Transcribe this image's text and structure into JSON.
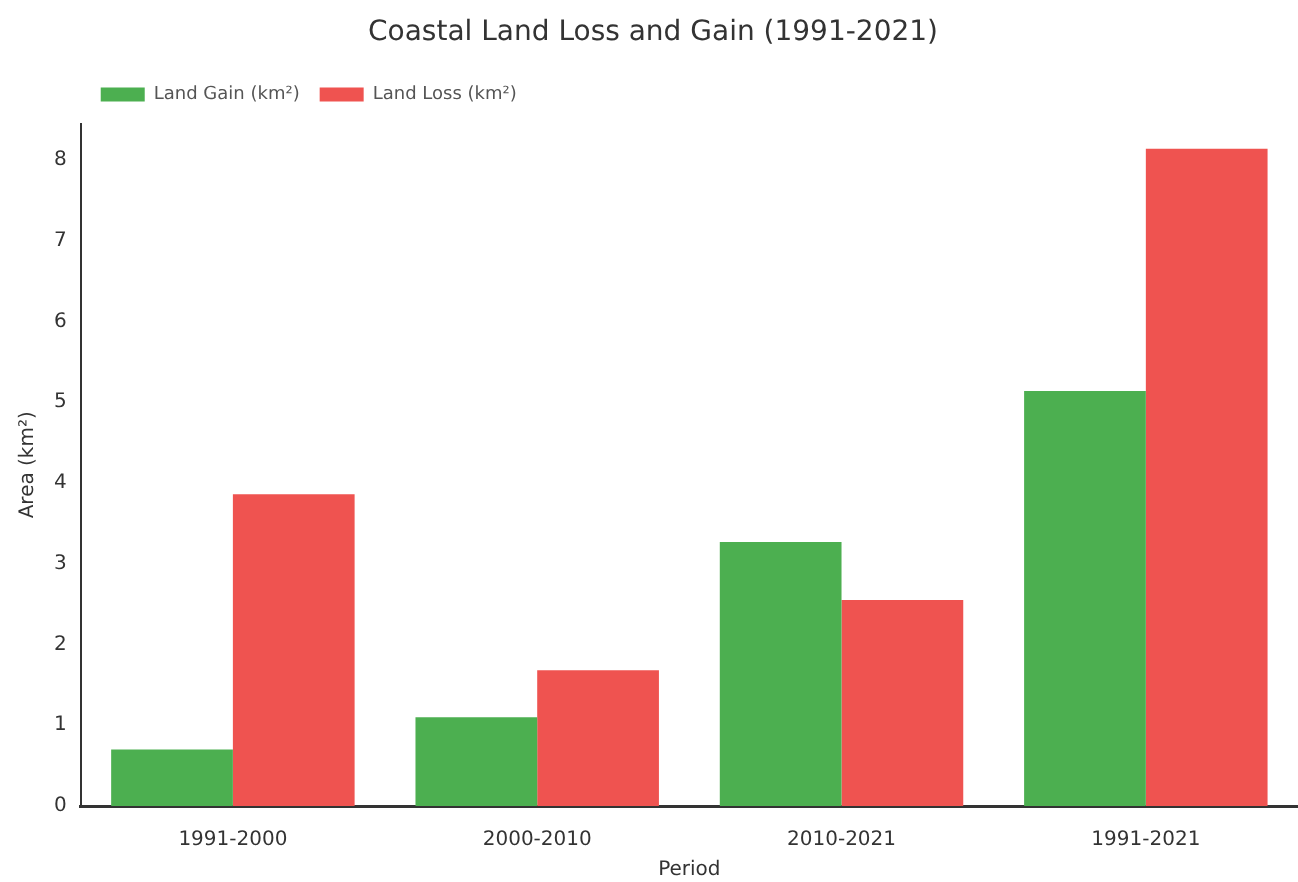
{
  "chart_data": {
    "type": "bar",
    "title": "Coastal Land Loss and Gain (1991-2021)",
    "xlabel": "Period",
    "ylabel": "Area (km²)",
    "categories": [
      "1991-2000",
      "2000-2010",
      "2010-2021",
      "1991-2021"
    ],
    "series": [
      {
        "name": "Land Gain (km²)",
        "color": "#4caf50",
        "values": [
          0.7,
          1.1,
          3.27,
          5.14
        ]
      },
      {
        "name": "Land Loss (km²)",
        "color": "#ef5350",
        "values": [
          3.86,
          1.68,
          2.55,
          8.14
        ]
      }
    ],
    "ylim": [
      0,
      8.45
    ],
    "yticks": [
      0,
      1,
      2,
      3,
      4,
      5,
      6,
      7,
      8
    ],
    "grid": false,
    "legend": "top left"
  }
}
